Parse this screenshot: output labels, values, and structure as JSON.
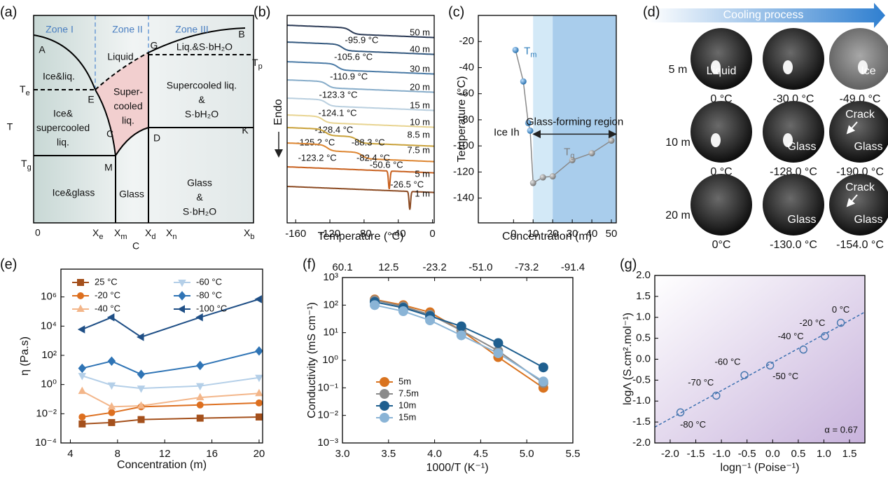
{
  "phase_diagram": {
    "panel": "(a)",
    "zones": [
      "Zone I",
      "Zone II",
      "Zone III"
    ],
    "regions": [
      [
        "Liquid"
      ],
      [
        "Liq.&S·bH₂O"
      ],
      [
        "Ice&liq."
      ],
      [
        "Super-",
        "cooled",
        "liq."
      ],
      [
        "Supercooled liq.",
        "&",
        "S·bH₂O"
      ],
      [
        "Ice&",
        "supercooled",
        "liq."
      ],
      [
        "Glass",
        "&",
        "S·bH₂O"
      ],
      [
        "Ice&glass"
      ],
      [
        "Glass"
      ]
    ],
    "points": [
      "A",
      "B",
      "E",
      "G",
      "C",
      "D",
      "K",
      "M"
    ],
    "y_axis": "T",
    "y_marks": [
      {
        "main": "T",
        "sub": "e"
      },
      {
        "main": "T",
        "sub": "g"
      },
      {
        "main": "T",
        "sub": "p"
      }
    ],
    "x_marks": [
      "0",
      {
        "main": "X",
        "sub": "e"
      },
      {
        "main": "X",
        "sub": "m"
      },
      {
        "main": "X",
        "sub": "d"
      },
      {
        "main": "X",
        "sub": "n"
      },
      {
        "main": "X",
        "sub": "b"
      }
    ],
    "x_axis": "C"
  },
  "photos": {
    "panel": "(d)",
    "title": "Cooling process",
    "rows": [
      {
        "label": "5 m",
        "cells": [
          {
            "caption": "0 °C",
            "overlay": [
              "Liquid"
            ]
          },
          {
            "caption": "-30.0 °C"
          },
          {
            "caption": "-49.0 °C",
            "overlay": [
              "Ice"
            ]
          }
        ]
      },
      {
        "label": "10 m",
        "cells": [
          {
            "caption": "0 °C"
          },
          {
            "caption": "-128.0 °C",
            "overlay": [
              "Glass"
            ]
          },
          {
            "caption": "-190.0 °C",
            "overlay": [
              "Crack",
              "Glass"
            ]
          }
        ]
      },
      {
        "label": "20 m",
        "cells": [
          {
            "caption": "0°C"
          },
          {
            "caption": "-130.0 °C",
            "overlay": [
              "Glass"
            ]
          },
          {
            "caption": "-154.0 °C",
            "overlay": [
              "Crack",
              "Glass"
            ]
          }
        ]
      }
    ]
  },
  "chart_data": [
    {
      "panel": "(b)",
      "type": "dsc",
      "xlabel": "Temperature (°C)",
      "ylabel": "Endo",
      "xlim": [
        -170,
        2
      ],
      "xticks": [
        -160,
        -120,
        -80,
        -40,
        0
      ],
      "series": [
        {
          "name": "50 m",
          "color": "#2b3a55",
          "kind": "step",
          "values": [
            -95.9
          ],
          "value_labels": [
            "-95.9 °C"
          ]
        },
        {
          "name": "40 m",
          "color": "#34597f",
          "kind": "step",
          "values": [
            -105.6
          ],
          "value_labels": [
            "-105.6 °C"
          ]
        },
        {
          "name": "30 m",
          "color": "#4b7ba6",
          "kind": "step",
          "values": [
            -110.9
          ],
          "value_labels": [
            "-110.9 °C"
          ]
        },
        {
          "name": "20 m",
          "color": "#86acc9",
          "kind": "step",
          "values": [
            -123.3
          ],
          "value_labels": [
            "-123.3 °C"
          ]
        },
        {
          "name": "15 m",
          "color": "#b9cfdf",
          "kind": "step",
          "values": [
            -124.1
          ],
          "value_labels": [
            "-124.1 °C"
          ]
        },
        {
          "name": "10 m",
          "color": "#e8d491",
          "kind": "step",
          "values": [
            -128.4
          ],
          "value_labels": [
            "-128.4 °C"
          ]
        },
        {
          "name": "8.5 m",
          "color": "#c9a13a",
          "kind": "step",
          "values": [
            -125.2,
            -88.3
          ],
          "value_labels": [
            "-125.2 °C",
            "-88.3 °C"
          ]
        },
        {
          "name": "7.5 m",
          "color": "#dd8530",
          "kind": "step",
          "values": [
            -123.2,
            -82.4
          ],
          "value_labels": [
            "-123.2 °C",
            "-82.4 °C"
          ]
        },
        {
          "name": "5 m",
          "color": "#c8601e",
          "kind": "peak",
          "values": [
            -50.6
          ],
          "value_labels": [
            "-50.6 °C"
          ]
        },
        {
          "name": "1 m",
          "color": "#8b4a22",
          "kind": "peak",
          "values": [
            -26.5
          ],
          "value_labels": [
            "-26.5 °C"
          ]
        }
      ]
    },
    {
      "panel": "(c)",
      "type": "line",
      "xlabel": "Concentration (m)",
      "ylabel": "Temperature (°C)",
      "xlim": [
        -18,
        52.5
      ],
      "xticks": [
        0,
        10,
        20,
        30,
        40,
        50
      ],
      "ylim": [
        -159,
        0
      ],
      "yticks": [
        -140,
        -120,
        -100,
        -80,
        -60,
        -40,
        -20
      ],
      "bands": [
        {
          "from": 10,
          "to": 20,
          "color": "#d3e9f7"
        },
        {
          "from": 20,
          "to": 52.5,
          "color": "#a9cdec"
        }
      ],
      "region_label": "Glass-forming region",
      "annotation": "Ice Ih",
      "line_color": "#8a8a8a",
      "series": [
        {
          "label": {
            "main": "T",
            "sub": "m"
          },
          "color": "#2b7bba",
          "x": [
            1,
            5,
            7.5,
            8.5
          ],
          "values": [
            -26.5,
            -50.6,
            -82.4,
            -88.3
          ]
        },
        {
          "label": {
            "main": "T",
            "sub": "g"
          },
          "color": "#7d7d7d",
          "x": [
            10,
            15,
            20,
            30,
            40,
            50
          ],
          "values": [
            -128.4,
            -124.1,
            -123.3,
            -110.9,
            -105.6,
            -95.9
          ]
        }
      ]
    },
    {
      "panel": "(e)",
      "type": "line",
      "xlabel": "Concentration (m)",
      "ylabel": "η (Pa.s)",
      "ylog": true,
      "xlim": [
        3.2,
        20.3
      ],
      "xticks": [
        4,
        8,
        12,
        16,
        20
      ],
      "ylim": [
        0.0001,
        80000000
      ],
      "yticks": [
        {
          "value": 0.0001,
          "label": "10⁻⁴"
        },
        {
          "value": 0.01,
          "label": "10⁻²"
        },
        {
          "value": 1,
          "label": "10⁰"
        },
        {
          "value": 100,
          "label": "10²"
        },
        {
          "value": 10000,
          "label": "10⁴"
        },
        {
          "value": 1000000,
          "label": "10⁶"
        }
      ],
      "x": [
        5,
        7.5,
        10,
        15,
        20
      ],
      "series": [
        {
          "name": "25 °C",
          "color": "#a4501c",
          "marker": "square",
          "values": [
            0.002,
            0.0025,
            0.004,
            0.005,
            0.006
          ]
        },
        {
          "name": "-20 °C",
          "color": "#dd6f1f",
          "marker": "circle",
          "values": [
            0.006,
            0.012,
            0.03,
            0.04,
            0.055
          ]
        },
        {
          "name": "-40 °C",
          "color": "#f3b68a",
          "marker": "triangle-up",
          "values": [
            0.35,
            0.03,
            0.035,
            0.13,
            0.25
          ]
        },
        {
          "name": "-60 °C",
          "color": "#b4cfe8",
          "marker": "triangle-down",
          "values": [
            4,
            0.9,
            0.55,
            0.8,
            3
          ]
        },
        {
          "name": "-80 °C",
          "color": "#2f74b5",
          "marker": "diamond",
          "values": [
            13,
            40,
            5,
            20,
            200
          ]
        },
        {
          "name": "-100 °C",
          "color": "#1f4f86",
          "marker": "triangle-left",
          "values": [
            6000,
            40000,
            1800,
            40000,
            700000
          ]
        }
      ]
    },
    {
      "panel": "(f)",
      "type": "line",
      "xlabel": "1000/T (K⁻¹)",
      "ylabel": "Conductivity (mS cm⁻¹)",
      "ylog": true,
      "xlim": [
        3,
        5.5
      ],
      "xticks": [
        {
          "value": 3,
          "label": "3.0"
        },
        3.5,
        {
          "value": 4,
          "label": "4.0"
        },
        4.5,
        {
          "value": 5,
          "label": "5.0"
        },
        5.5
      ],
      "x2ticks": [
        {
          "value": 3,
          "label": "60.1"
        },
        {
          "value": 3.5,
          "label": "12.5"
        },
        {
          "value": 4,
          "label": "-23.2"
        },
        {
          "value": 4.5,
          "label": "-51.0"
        },
        {
          "value": 5,
          "label": "-73.2"
        },
        {
          "value": 5.5,
          "label": "-91.4"
        }
      ],
      "ylim": [
        0.001,
        1000
      ],
      "yticks": [
        {
          "value": 0.001,
          "label": "10⁻³"
        },
        {
          "value": 0.01,
          "label": "10⁻²"
        },
        {
          "value": 0.1,
          "label": "10⁻¹"
        },
        {
          "value": 1,
          "label": "10⁰"
        },
        {
          "value": 10,
          "label": "10¹"
        },
        {
          "value": 100,
          "label": "10²"
        },
        {
          "value": 1000,
          "label": "10³"
        }
      ],
      "x": [
        3.35,
        3.66,
        3.95,
        4.29,
        4.69,
        5.18
      ],
      "series": [
        {
          "name": "5m",
          "color": "#d9731f",
          "marker": "circle",
          "values": [
            160,
            100,
            55,
            12,
            1.3,
            0.1
          ]
        },
        {
          "name": "7.5m",
          "color": "#8a8a8a",
          "marker": "circle",
          "values": [
            150,
            90,
            45,
            12,
            2.2,
            0.15
          ]
        },
        {
          "name": "10m",
          "color": "#1f5f8f",
          "marker": "circle",
          "values": [
            130,
            80,
            40,
            17,
            4.2,
            0.55
          ]
        },
        {
          "name": "15m",
          "color": "#8ab4d6",
          "marker": "circle",
          "values": [
            100,
            60,
            28,
            8,
            1.8,
            0.17
          ]
        }
      ]
    },
    {
      "panel": "(g)",
      "type": "scatter",
      "xlabel": "logη⁻¹ (Poise⁻¹)",
      "ylabel": "logΛ (S.cm².mol⁻¹)",
      "xlim": [
        -2.3,
        1.8
      ],
      "xticks": [
        {
          "value": -2,
          "label": "-2.0"
        },
        -1.5,
        {
          "value": -1,
          "label": "-1.0"
        },
        -0.5,
        {
          "value": 0,
          "label": "0.0"
        },
        0.5,
        {
          "value": 1,
          "label": "1.0"
        },
        1.5
      ],
      "ylim": [
        -2,
        2
      ],
      "yticks": [
        {
          "value": -2,
          "label": "-2.0"
        },
        -1.5,
        {
          "value": -1,
          "label": "-1.0"
        },
        -0.5,
        {
          "value": 0,
          "label": "0.0"
        },
        0.5,
        {
          "value": 1,
          "label": "1.0"
        },
        1.5,
        {
          "value": 2,
          "label": "2.0"
        }
      ],
      "color": "#4a79b0",
      "x": [
        -1.8,
        -1.1,
        -0.55,
        -0.05,
        0.6,
        1.02,
        1.33
      ],
      "values": [
        -1.27,
        -0.87,
        -0.38,
        -0.15,
        0.23,
        0.55,
        0.87
      ],
      "point_labels": [
        "-80 °C",
        "-70 °C",
        "-60 °C",
        "-50 °C",
        "-40 °C",
        "-20 °C",
        "0 °C"
      ],
      "fit": {
        "slope": 0.67,
        "intercept": -0.08
      },
      "annotation": "α = 0.67"
    }
  ]
}
